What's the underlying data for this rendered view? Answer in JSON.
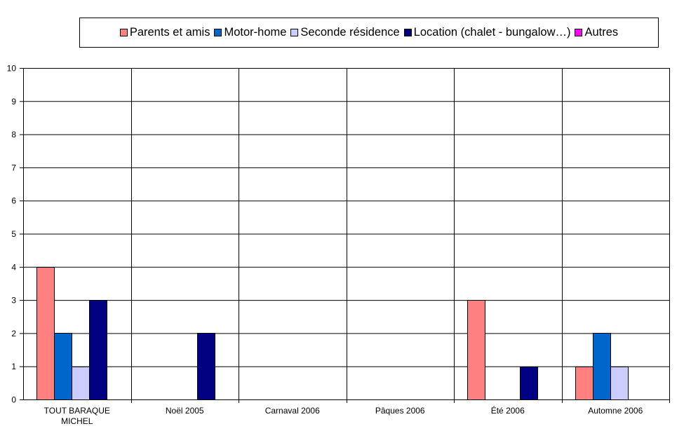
{
  "chart_data": {
    "type": "bar",
    "title": "",
    "xlabel": "",
    "ylabel": "",
    "ylim": [
      0,
      10
    ],
    "yticks": [
      0,
      1,
      2,
      3,
      4,
      5,
      6,
      7,
      8,
      9,
      10
    ],
    "grid": true,
    "legend_position": "top",
    "categories": [
      [
        "TOUT BARAQUE",
        "MICHEL"
      ],
      [
        "Noël 2005"
      ],
      [
        "Carnaval 2006"
      ],
      [
        "Pâques 2006"
      ],
      [
        "Été 2006"
      ],
      [
        "Automne 2006"
      ]
    ],
    "series": [
      {
        "name": "Parents et amis",
        "color": "#FF8080",
        "values": [
          4,
          0,
          0,
          0,
          3,
          1
        ]
      },
      {
        "name": "Motor-home",
        "color": "#0066CC",
        "values": [
          2,
          0,
          0,
          0,
          0,
          2
        ]
      },
      {
        "name": "Seconde résidence",
        "color": "#CCCCFF",
        "values": [
          1,
          0,
          0,
          0,
          0,
          1
        ]
      },
      {
        "name": "Location (chalet - bungalow…)",
        "color": "#000080",
        "values": [
          3,
          2,
          0,
          0,
          1,
          0
        ]
      },
      {
        "name": "Autres",
        "color": "#FF00FF",
        "values": [
          0,
          0,
          0,
          0,
          0,
          0
        ]
      }
    ]
  }
}
